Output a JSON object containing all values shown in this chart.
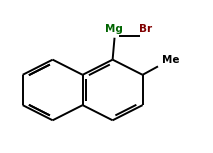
{
  "bg_color": "#ffffff",
  "line_color": "#000000",
  "mg_color": "#006400",
  "br_color": "#800000",
  "line_width": 1.4,
  "figsize": [
    2.13,
    1.53
  ],
  "dpi": 100,
  "xlim": [
    -0.5,
    10.5
  ],
  "ylim": [
    -0.5,
    8.5
  ]
}
